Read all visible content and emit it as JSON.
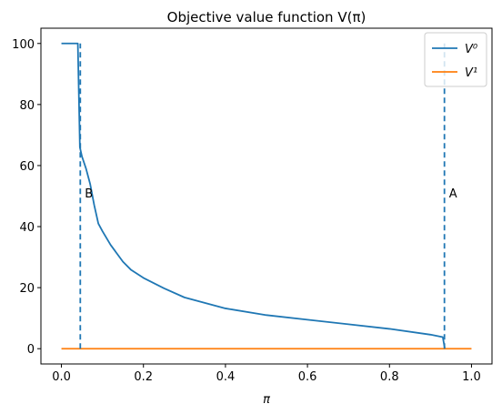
{
  "chart_data": {
    "type": "line",
    "title": "Objective value function V(π)",
    "xlabel": "π",
    "ylabel": "",
    "xlim": [
      -0.05,
      1.05
    ],
    "ylim": [
      -5,
      105
    ],
    "xticks": [
      "0.0",
      "0.2",
      "0.4",
      "0.6",
      "0.8",
      "1.0"
    ],
    "xtick_values": [
      0.0,
      0.2,
      0.4,
      0.6,
      0.8,
      1.0
    ],
    "yticks": [
      "0",
      "20",
      "40",
      "60",
      "80",
      "100"
    ],
    "ytick_values": [
      0,
      20,
      40,
      60,
      80,
      100
    ],
    "grid": false,
    "legend_position": "top-right",
    "series": [
      {
        "name": "V⁰",
        "color": "#1f77b4",
        "x": [
          0.0,
          0.04,
          0.045,
          0.05,
          0.06,
          0.07,
          0.08,
          0.09,
          0.1,
          0.12,
          0.15,
          0.17,
          0.2,
          0.25,
          0.3,
          0.4,
          0.5,
          0.6,
          0.7,
          0.8,
          0.9,
          0.93,
          0.935
        ],
        "y": [
          100,
          100,
          66,
          63,
          59,
          54,
          47,
          41,
          38.5,
          34,
          28.5,
          25.8,
          23.2,
          19.8,
          16.8,
          13.2,
          11.0,
          9.5,
          8.0,
          6.5,
          4.6,
          3.8,
          0
        ]
      },
      {
        "name": "V¹",
        "color": "#ff7f0e",
        "x": [
          0.0,
          1.0
        ],
        "y": [
          0,
          0
        ]
      }
    ],
    "vlines": [
      {
        "label": "B",
        "x": 0.046,
        "ymin": 0,
        "ymax": 100,
        "label_y": 51,
        "color": "#1f77b4"
      },
      {
        "label": "A",
        "x": 0.934,
        "ymin": 0,
        "ymax": 100,
        "label_y": 51,
        "color": "#1f77b4"
      }
    ]
  }
}
